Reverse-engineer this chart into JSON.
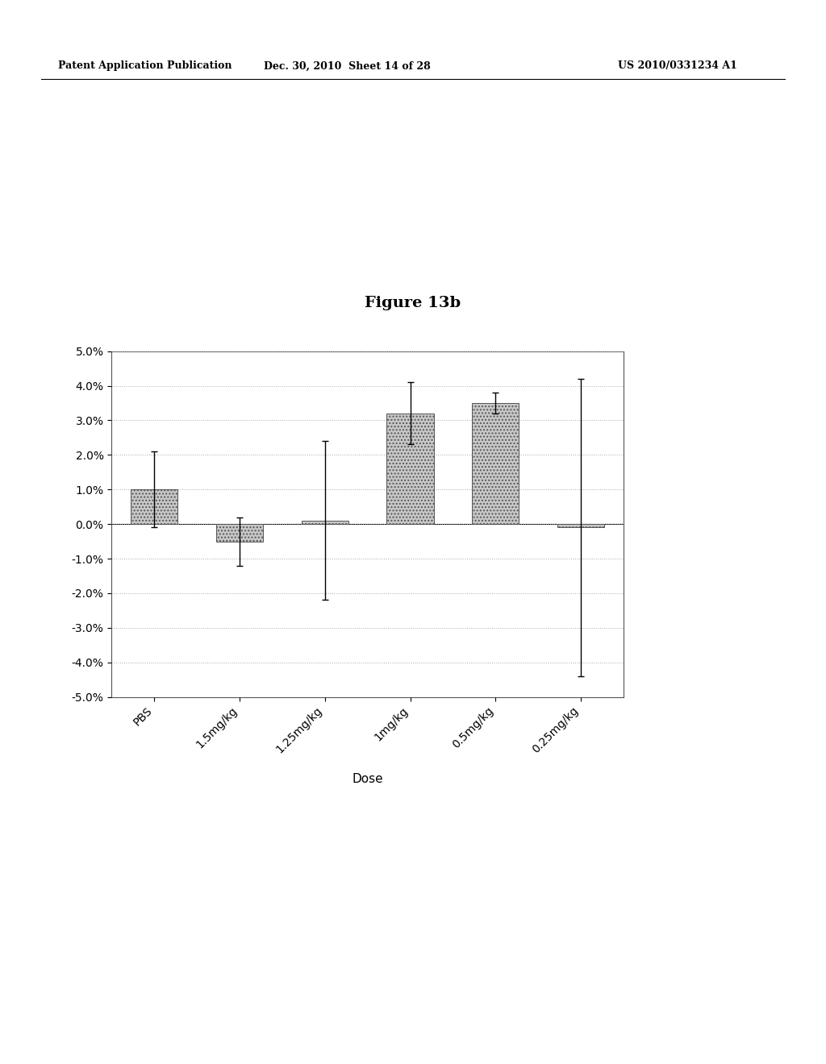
{
  "title": "Figure 13b",
  "xlabel": "Dose",
  "header_left": "Patent Application Publication",
  "header_mid": "Dec. 30, 2010  Sheet 14 of 28",
  "header_right": "US 2010/0331234 A1",
  "categories": [
    "PBS",
    "1.5mg/kg",
    "1.25mg/kg",
    "1mg/kg",
    "0.5mg/kg",
    "0.25mg/kg"
  ],
  "values": [
    0.01,
    -0.005,
    0.001,
    0.032,
    0.035,
    -0.001
  ],
  "errors": [
    0.011,
    0.007,
    0.023,
    0.009,
    0.003,
    0.043
  ],
  "ylim": [
    -0.05,
    0.05
  ],
  "yticks": [
    -0.05,
    -0.04,
    -0.03,
    -0.02,
    -0.01,
    0.0,
    0.01,
    0.02,
    0.03,
    0.04,
    0.05
  ],
  "bar_color": "#c8c8c8",
  "bar_edge_color": "#555555",
  "background_color": "#ffffff",
  "grid_color": "#aaaaaa",
  "title_fontsize": 14,
  "axis_label_fontsize": 11,
  "tick_fontsize": 10,
  "header_fontsize": 9
}
